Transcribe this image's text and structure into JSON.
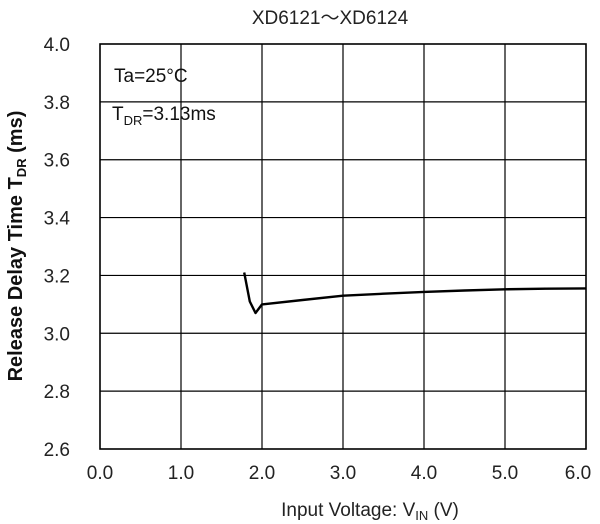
{
  "chart_data": {
    "type": "line",
    "title": "XD6121〜XD6124",
    "xlabel": {
      "main": "Input Voltage:  V",
      "sub": "IN",
      "unit": " (V)"
    },
    "ylabel": {
      "main": "Release Delay Time  T",
      "sub": "DR",
      "unit": " (ms)"
    },
    "xlim": [
      0.0,
      6.0
    ],
    "ylim": [
      2.6,
      4.0
    ],
    "x_ticks": [
      0.0,
      1.0,
      2.0,
      3.0,
      4.0,
      5.0,
      6.0
    ],
    "x_tick_labels": [
      "0.0",
      "1.0",
      "2.0",
      "3.0",
      "4.0",
      "5.0",
      "6.0"
    ],
    "y_ticks": [
      2.6,
      2.8,
      3.0,
      3.2,
      3.4,
      3.6,
      3.8,
      4.0
    ],
    "y_tick_labels": [
      "2.6",
      "2.8",
      "3.0",
      "3.2",
      "3.4",
      "3.6",
      "3.8",
      "4.0"
    ],
    "grid": true,
    "annotations": {
      "ta": "Ta=25°C",
      "tdr_main": "T",
      "tdr_sub": "DR",
      "tdr_value": "=3.13ms"
    },
    "series": [
      {
        "x": [
          1.78,
          1.85,
          1.92,
          2.0,
          2.5,
          3.0,
          3.5,
          4.0,
          4.5,
          5.0,
          5.5,
          6.0
        ],
        "y": [
          3.21,
          3.11,
          3.07,
          3.1,
          3.115,
          3.13,
          3.137,
          3.143,
          3.148,
          3.152,
          3.154,
          3.155
        ]
      }
    ]
  }
}
